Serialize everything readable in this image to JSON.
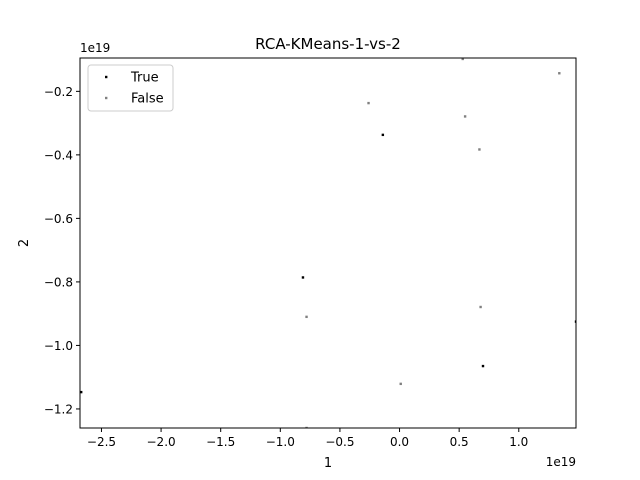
{
  "chart_data": {
    "type": "scatter",
    "title": "RCA-KMeans-1-vs-2",
    "xlabel": "1",
    "ylabel": "2",
    "x_offset_label": "1e19",
    "y_offset_label": "1e19",
    "xlim": [
      -2.68,
      1.48
    ],
    "ylim": [
      -1.26,
      -0.095
    ],
    "x_ticks": [
      -2.5,
      -2.0,
      -1.5,
      -1.0,
      -0.5,
      0.0,
      0.5,
      1.0
    ],
    "x_tick_labels": [
      "−2.5",
      "−2.0",
      "−1.5",
      "−1.0",
      "−0.5",
      "0.0",
      "0.5",
      "1.0"
    ],
    "y_ticks": [
      -0.2,
      -0.4,
      -0.6,
      -0.8,
      -1.0,
      -1.2
    ],
    "y_tick_labels": [
      "−0.2",
      "−0.4",
      "−0.6",
      "−0.8",
      "−1.0",
      "−1.2"
    ],
    "grid": false,
    "legend_position": "top-left",
    "series": [
      {
        "name": "True",
        "color": "#000000",
        "x": [
          -0.14,
          -0.81,
          0.7,
          -2.67,
          1.48
        ],
        "y": [
          -0.337,
          -0.786,
          -1.065,
          -1.147,
          -0.925
        ]
      },
      {
        "name": "False",
        "color": "#808080",
        "x": [
          -0.26,
          0.55,
          0.67,
          1.34,
          -0.78,
          0.68,
          0.01,
          0.53,
          -0.78
        ],
        "y": [
          -0.237,
          -0.279,
          -0.383,
          -0.143,
          -0.91,
          -0.879,
          -1.121,
          -0.098,
          -1.26
        ]
      }
    ]
  }
}
